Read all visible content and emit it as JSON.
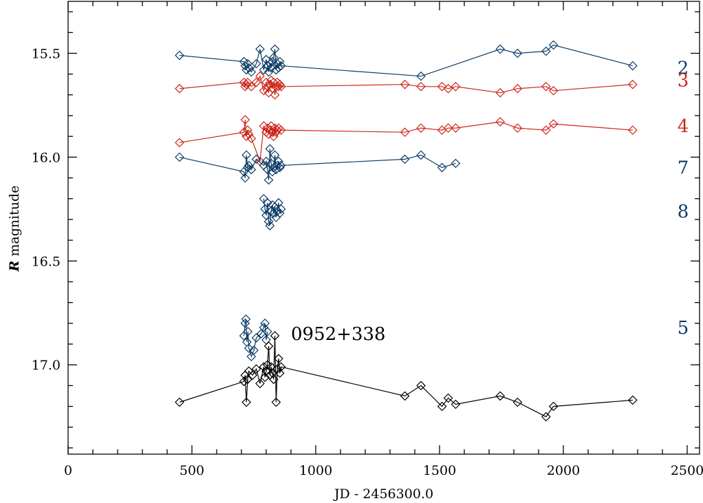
{
  "chart_data": {
    "type": "scatter",
    "title": "",
    "xlabel": "JD - 2456300.0",
    "ylabel_prefix": "R",
    "ylabel_suffix": " magnitude",
    "xlim": [
      0,
      2550
    ],
    "ylim": [
      17.43,
      15.25
    ],
    "x_ticks": [
      0,
      500,
      1000,
      1500,
      2000,
      2500
    ],
    "x_tick_labels": [
      "0",
      "500",
      "1000",
      "1500",
      "2000",
      "2500"
    ],
    "y_ticks": [
      15.5,
      16.0,
      16.5,
      17.0
    ],
    "y_tick_labels": [
      "15.5",
      "16.0",
      "16.5",
      "17.0"
    ],
    "grid": false,
    "annotations": [
      {
        "text": "0952+338",
        "x": 900,
        "y": 16.85,
        "color": "#000000"
      }
    ],
    "series": [
      {
        "label": "2",
        "label_y": 15.57,
        "color": "#0d3b66",
        "x": [
          450,
          710,
          715,
          720,
          725,
          730,
          740,
          760,
          775,
          790,
          800,
          805,
          810,
          815,
          820,
          825,
          830,
          835,
          840,
          845,
          850,
          855,
          860,
          1425,
          1745,
          1815,
          1930,
          1960,
          2280
        ],
        "y": [
          15.51,
          15.54,
          15.56,
          15.58,
          15.55,
          15.57,
          15.59,
          15.55,
          15.48,
          15.58,
          15.53,
          15.56,
          15.59,
          15.55,
          15.57,
          15.54,
          15.52,
          15.48,
          15.58,
          15.55,
          15.57,
          15.54,
          15.56,
          15.61,
          15.48,
          15.5,
          15.49,
          15.46,
          15.56
        ]
      },
      {
        "label": "3",
        "label_y": 15.63,
        "color": "#cc2418",
        "x": [
          450,
          710,
          715,
          720,
          725,
          740,
          760,
          775,
          790,
          800,
          805,
          810,
          815,
          820,
          825,
          830,
          835,
          840,
          845,
          850,
          855,
          860,
          1360,
          1425,
          1510,
          1535,
          1565,
          1745,
          1815,
          1930,
          1960,
          2280
        ],
        "y": [
          15.67,
          15.64,
          15.66,
          15.65,
          15.64,
          15.66,
          15.64,
          15.61,
          15.68,
          15.64,
          15.66,
          15.69,
          15.65,
          15.63,
          15.67,
          15.64,
          15.7,
          15.66,
          15.64,
          15.66,
          15.65,
          15.66,
          15.65,
          15.66,
          15.66,
          15.67,
          15.66,
          15.69,
          15.67,
          15.66,
          15.68,
          15.65
        ]
      },
      {
        "label": "4",
        "label_y": 15.85,
        "color": "#cc2418",
        "x": [
          450,
          710,
          715,
          720,
          725,
          730,
          740,
          775,
          790,
          800,
          805,
          810,
          815,
          820,
          825,
          830,
          835,
          840,
          845,
          850,
          860,
          1360,
          1425,
          1510,
          1535,
          1565,
          1745,
          1815,
          1930,
          1960,
          2280
        ],
        "y": [
          15.93,
          15.88,
          15.82,
          15.9,
          15.87,
          15.89,
          15.91,
          16.02,
          15.85,
          15.88,
          15.86,
          15.89,
          15.87,
          15.85,
          15.88,
          15.9,
          15.86,
          15.88,
          15.87,
          15.86,
          15.87,
          15.88,
          15.86,
          15.87,
          15.86,
          15.86,
          15.83,
          15.86,
          15.87,
          15.84,
          15.87
        ]
      },
      {
        "label": "7",
        "label_y": 16.05,
        "color": "#0d3b66",
        "x": [
          450,
          710,
          715,
          720,
          725,
          730,
          740,
          760,
          790,
          800,
          805,
          810,
          815,
          820,
          825,
          830,
          835,
          840,
          845,
          850,
          855,
          860,
          1360,
          1425,
          1510,
          1565
        ],
        "y": [
          16.0,
          16.07,
          16.1,
          15.99,
          16.05,
          16.04,
          16.06,
          16.01,
          16.04,
          16.02,
          16.06,
          16.11,
          15.96,
          16.03,
          16.07,
          16.05,
          15.99,
          16.06,
          16.04,
          16.02,
          16.05,
          16.04,
          16.01,
          15.99,
          16.05,
          16.03
        ]
      },
      {
        "label": "8",
        "label_y": 16.26,
        "color": "#0d3b66",
        "x": [
          790,
          795,
          800,
          805,
          810,
          815,
          820,
          825,
          830,
          835,
          840,
          845,
          850,
          855,
          860
        ],
        "y": [
          16.2,
          16.25,
          16.28,
          16.22,
          16.31,
          16.33,
          16.26,
          16.23,
          16.27,
          16.24,
          16.29,
          16.26,
          16.22,
          16.27,
          16.25
        ]
      },
      {
        "label": "5",
        "label_y": 16.82,
        "color": "#0d3b66",
        "x": [
          710,
          715,
          718,
          722,
          726,
          730,
          740,
          750,
          760,
          780,
          790,
          795,
          800,
          805
        ],
        "y": [
          16.86,
          16.8,
          16.78,
          16.89,
          16.84,
          16.92,
          16.96,
          16.93,
          16.87,
          16.85,
          16.82,
          16.8,
          16.88,
          16.84
        ]
      },
      {
        "label": "",
        "label_y": 0,
        "color": "#000000",
        "x": [
          450,
          710,
          715,
          720,
          725,
          730,
          745,
          760,
          775,
          790,
          795,
          800,
          805,
          810,
          815,
          820,
          825,
          830,
          835,
          840,
          845,
          850,
          855,
          860,
          1360,
          1425,
          1510,
          1535,
          1565,
          1745,
          1815,
          1930,
          1960,
          2280
        ],
        "y": [
          17.18,
          17.08,
          17.05,
          17.18,
          17.07,
          17.03,
          17.05,
          17.02,
          17.09,
          17.01,
          17.06,
          17.03,
          17.0,
          16.91,
          17.05,
          17.01,
          17.04,
          17.07,
          16.86,
          17.18,
          17.02,
          16.97,
          17.04,
          17.01,
          17.15,
          17.1,
          17.2,
          17.16,
          17.19,
          17.15,
          17.18,
          17.25,
          17.2,
          17.17
        ]
      }
    ]
  }
}
